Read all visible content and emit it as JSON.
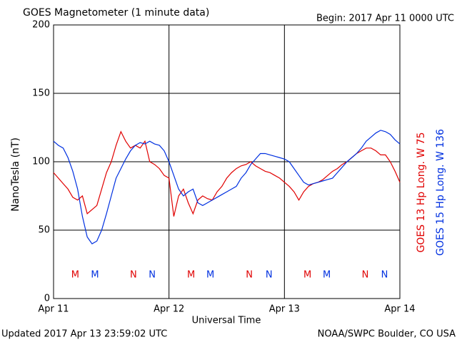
{
  "chart_data": {
    "type": "line",
    "title": "GOES Magnetometer (1 minute data)",
    "subtitle": "Begin:  2017 Apr 11 0000 UTC",
    "ylabel": "NanoTesla (nT)",
    "xlabel": "Universal Time",
    "footer_left": "Updated 2017 Apr 13 23:59:02 UTC",
    "footer_right": "NOAA/SWPC Boulder, CO USA",
    "grid": true,
    "xlim": [
      0,
      72
    ],
    "xticks": [
      {
        "value": 0,
        "label": "Apr 11"
      },
      {
        "value": 24,
        "label": "Apr 12"
      },
      {
        "value": 48,
        "label": "Apr 13"
      },
      {
        "value": 72,
        "label": "Apr 14"
      }
    ],
    "ylim": [
      0,
      200
    ],
    "yticks": [
      0,
      50,
      100,
      150,
      200
    ],
    "x": [
      0,
      1,
      2,
      3,
      4,
      5,
      6,
      7,
      8,
      9,
      10,
      11,
      12,
      13,
      14,
      15,
      16,
      17,
      18,
      19,
      20,
      21,
      22,
      23,
      24,
      25,
      26,
      27,
      28,
      29,
      30,
      31,
      32,
      33,
      34,
      35,
      36,
      37,
      38,
      39,
      40,
      41,
      42,
      43,
      44,
      45,
      46,
      47,
      48,
      49,
      50,
      51,
      52,
      53,
      54,
      55,
      56,
      57,
      58,
      59,
      60,
      61,
      62,
      63,
      64,
      65,
      66,
      67,
      68,
      69,
      70,
      71,
      72
    ],
    "series": [
      {
        "name": "GOES 13 Hp  Long. W 75",
        "color": "#e00000",
        "values": [
          92,
          88,
          84,
          80,
          74,
          72,
          75,
          62,
          65,
          68,
          80,
          92,
          100,
          112,
          122,
          115,
          110,
          112,
          110,
          115,
          100,
          98,
          95,
          90,
          88,
          60,
          75,
          80,
          70,
          62,
          72,
          75,
          73,
          72,
          78,
          82,
          88,
          92,
          95,
          97,
          98,
          100,
          97,
          95,
          93,
          92,
          90,
          88,
          85,
          82,
          78,
          72,
          78,
          82,
          84,
          85,
          87,
          90,
          93,
          95,
          98,
          100,
          103,
          106,
          108,
          110,
          110,
          108,
          105,
          105,
          100,
          93,
          85
        ]
      },
      {
        "name": "GOES 15 Hp  Long. W 136",
        "color": "#0030e0",
        "values": [
          115,
          112,
          110,
          103,
          93,
          80,
          60,
          45,
          40,
          42,
          50,
          62,
          75,
          88,
          95,
          102,
          108,
          112,
          114,
          113,
          115,
          113,
          112,
          108,
          100,
          90,
          80,
          75,
          78,
          80,
          70,
          68,
          70,
          72,
          74,
          76,
          78,
          80,
          82,
          88,
          92,
          98,
          102,
          106,
          106,
          105,
          104,
          103,
          102,
          100,
          95,
          90,
          85,
          83,
          84,
          85,
          86,
          87,
          88,
          92,
          96,
          100,
          103,
          106,
          110,
          115,
          118,
          121,
          123,
          122,
          120,
          116,
          113
        ]
      }
    ],
    "annotations": [
      {
        "text": "M",
        "x": 4.5,
        "series": 0
      },
      {
        "text": "M",
        "x": 8.6,
        "series": 1
      },
      {
        "text": "N",
        "x": 16.6,
        "series": 0
      },
      {
        "text": "N",
        "x": 20.5,
        "series": 1
      },
      {
        "text": "M",
        "x": 28.6,
        "series": 0
      },
      {
        "text": "M",
        "x": 32.6,
        "series": 1
      },
      {
        "text": "N",
        "x": 40.7,
        "series": 0
      },
      {
        "text": "N",
        "x": 44.8,
        "series": 1
      },
      {
        "text": "M",
        "x": 52.8,
        "series": 0
      },
      {
        "text": "M",
        "x": 56.8,
        "series": 1
      },
      {
        "text": "N",
        "x": 64.8,
        "series": 0
      },
      {
        "text": "N",
        "x": 68.8,
        "series": 1
      }
    ]
  }
}
